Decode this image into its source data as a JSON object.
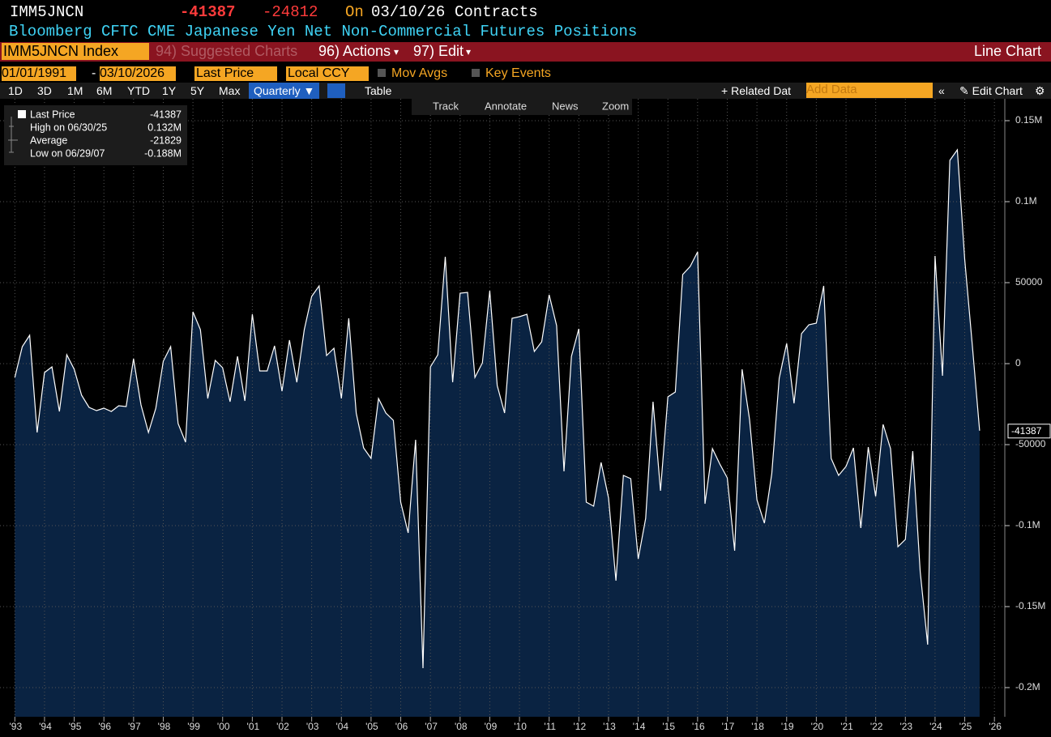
{
  "header": {
    "ticker": "IMM5JNCN",
    "last": "-41387",
    "change": "-24812",
    "on": "On",
    "date": "03/10/26",
    "unit": "Contracts",
    "description": "Bloomberg CFTC CME Japanese Yen Net Non-Commercial Futures Positions"
  },
  "menu": {
    "security": "IMM5JNCN Index",
    "suggested": "94) Suggested Charts",
    "actions": "96) Actions",
    "edit": "97) Edit",
    "view": "Line Chart"
  },
  "settings": {
    "start": "01/01/1991",
    "end": "03/10/2026",
    "field": "Last Price",
    "currency": "Local CCY",
    "mov_avgs": "Mov Avgs",
    "key_events": "Key Events"
  },
  "periods": [
    "1D",
    "3D",
    "1M",
    "6M",
    "YTD",
    "1Y",
    "5Y",
    "Max"
  ],
  "frequency": "Quarterly",
  "table": "Table",
  "related": "Related Dat",
  "add_data": "Add Data",
  "edit_chart": "Edit Chart",
  "tools": [
    "Track",
    "Annotate",
    "News",
    "Zoom"
  ],
  "chart_data": {
    "type": "area",
    "legend": [
      {
        "label": "Last Price",
        "value": "-41387"
      },
      {
        "label": "High on 06/30/25",
        "value": "0.132M"
      },
      {
        "label": "Average",
        "value": "-21829"
      },
      {
        "label": "Low on 06/29/07",
        "value": "-0.188M"
      }
    ],
    "x": [
      1993,
      1993.25,
      1993.5,
      1993.75,
      1994,
      1994.25,
      1994.5,
      1994.75,
      1995,
      1995.25,
      1995.5,
      1995.75,
      1996,
      1996.25,
      1996.5,
      1996.75,
      1997,
      1997.25,
      1997.5,
      1997.75,
      1998,
      1998.25,
      1998.5,
      1998.75,
      1999,
      1999.25,
      1999.5,
      1999.75,
      2000,
      2000.25,
      2000.5,
      2000.75,
      2001,
      2001.25,
      2001.5,
      2001.75,
      2002,
      2002.25,
      2002.5,
      2002.75,
      2003,
      2003.25,
      2003.5,
      2003.75,
      2004,
      2004.25,
      2004.5,
      2004.75,
      2005,
      2005.25,
      2005.5,
      2005.75,
      2006,
      2006.25,
      2006.5,
      2006.75,
      2007,
      2007.25,
      2007.5,
      2007.75,
      2008,
      2008.25,
      2008.5,
      2008.75,
      2009,
      2009.25,
      2009.5,
      2009.75,
      2010,
      2010.25,
      2010.5,
      2010.75,
      2011,
      2011.25,
      2011.5,
      2011.75,
      2012,
      2012.25,
      2012.5,
      2012.75,
      2013,
      2013.25,
      2013.5,
      2013.75,
      2014,
      2014.25,
      2014.5,
      2014.75,
      2015,
      2015.25,
      2015.5,
      2015.75,
      2016,
      2016.25,
      2016.5,
      2016.75,
      2017,
      2017.25,
      2017.5,
      2017.75,
      2018,
      2018.25,
      2018.5,
      2018.75,
      2019,
      2019.25,
      2019.5,
      2019.75,
      2020,
      2020.25,
      2020.5,
      2020.75,
      2021,
      2021.25,
      2021.5,
      2021.75,
      2022,
      2022.25,
      2022.5,
      2022.75,
      2023,
      2023.25,
      2023.5,
      2023.75,
      2024,
      2024.25,
      2024.5,
      2024.75,
      2025,
      2025.25,
      2025.5
    ],
    "series": [
      {
        "name": "Last Price",
        "color": "#ffffff",
        "fill": "#0a2342",
        "values": [
          -8500,
          10500,
          17500,
          -42500,
          -5500,
          -2000,
          -29500,
          5500,
          -3500,
          -19500,
          -27000,
          -29000,
          -27500,
          -29500,
          -26000,
          -26500,
          3000,
          -25500,
          -42500,
          -27500,
          1500,
          10500,
          -37000,
          -48500,
          32000,
          21000,
          -21500,
          2000,
          -2500,
          -23500,
          4500,
          -23000,
          30500,
          -4500,
          -4500,
          11000,
          -17000,
          14500,
          -11500,
          21000,
          41500,
          48000,
          5000,
          9500,
          -21500,
          28000,
          -30500,
          -52000,
          -58500,
          -21500,
          -30500,
          -35000,
          -85500,
          -104500,
          -47000,
          -188000,
          -2000,
          5500,
          66000,
          -11500,
          43500,
          44000,
          -8500,
          500,
          45000,
          -13500,
          -30500,
          28000,
          29000,
          30500,
          7500,
          13500,
          42500,
          23500,
          -66500,
          4500,
          21500,
          -85500,
          -88000,
          -61000,
          -83000,
          -134000,
          -69000,
          -71000,
          -120500,
          -95500,
          -23500,
          -78500,
          -20500,
          -17500,
          55000,
          60000,
          69000,
          -86500,
          -52500,
          -62000,
          -70500,
          -115500,
          -3500,
          -34500,
          -84000,
          -98500,
          -68000,
          -9000,
          12500,
          -24500,
          18500,
          24000,
          25000,
          48000,
          -58500,
          -69000,
          -63500,
          -52000,
          -101500,
          -51500,
          -82000,
          -37500,
          -52500,
          -113000,
          -108500,
          -54000,
          -128500,
          -173500,
          66500,
          -7500,
          125500,
          132000,
          64500,
          12500,
          -41387
        ]
      }
    ],
    "xlim": [
      1992.5,
      2026.35
    ],
    "xticks": [
      {
        "value": 1993,
        "label": "'93"
      },
      {
        "value": 1994,
        "label": "'94"
      },
      {
        "value": 1995,
        "label": "'95"
      },
      {
        "value": 1996,
        "label": "'96"
      },
      {
        "value": 1997,
        "label": "'97"
      },
      {
        "value": 1998,
        "label": "'98"
      },
      {
        "value": 1999,
        "label": "'99"
      },
      {
        "value": 2000,
        "label": "'00"
      },
      {
        "value": 2001,
        "label": "'01"
      },
      {
        "value": 2002,
        "label": "'02"
      },
      {
        "value": 2003,
        "label": "'03"
      },
      {
        "value": 2004,
        "label": "'04"
      },
      {
        "value": 2005,
        "label": "'05"
      },
      {
        "value": 2006,
        "label": "'06"
      },
      {
        "value": 2007,
        "label": "'07"
      },
      {
        "value": 2008,
        "label": "'08"
      },
      {
        "value": 2009,
        "label": "'09"
      },
      {
        "value": 2010,
        "label": "'10"
      },
      {
        "value": 2011,
        "label": "'11"
      },
      {
        "value": 2012,
        "label": "'12"
      },
      {
        "value": 2013,
        "label": "'13"
      },
      {
        "value": 2014,
        "label": "'14"
      },
      {
        "value": 2015,
        "label": "'15"
      },
      {
        "value": 2016,
        "label": "'16"
      },
      {
        "value": 2017,
        "label": "'17"
      },
      {
        "value": 2018,
        "label": "'18"
      },
      {
        "value": 2019,
        "label": "'19"
      },
      {
        "value": 2020,
        "label": "'20"
      },
      {
        "value": 2021,
        "label": "'21"
      },
      {
        "value": 2022,
        "label": "'22"
      },
      {
        "value": 2023,
        "label": "'23"
      },
      {
        "value": 2024,
        "label": "'24"
      },
      {
        "value": 2025,
        "label": "'25"
      },
      {
        "value": 2026,
        "label": "'26"
      }
    ],
    "ylim": [
      -218000,
      163500
    ],
    "yticks": [
      {
        "value": 150000,
        "label": "0.15M"
      },
      {
        "value": 100000,
        "label": "0.1M"
      },
      50000,
      0,
      -50000,
      {
        "value": -100000,
        "label": "-0.1M"
      },
      {
        "value": -150000,
        "label": "-0.15M"
      },
      {
        "value": -200000,
        "label": "-0.2M"
      }
    ],
    "grid": true
  }
}
